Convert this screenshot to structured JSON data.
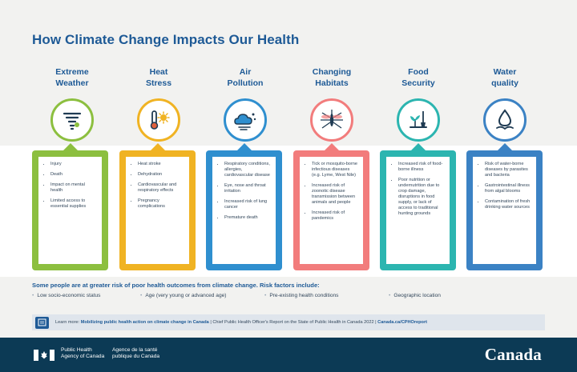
{
  "title": "How Climate Change Impacts Our Health",
  "topics": [
    {
      "label_lines": [
        "Extreme",
        "Weather"
      ],
      "icon": "tornado-icon",
      "color": "#8cbf3f",
      "items": [
        "Injury",
        "Death",
        "Impact on mental health",
        "Limited access to essential supplies"
      ]
    },
    {
      "label_lines": [
        "Heat",
        "Stress"
      ],
      "icon": "thermometer-sun-icon",
      "color": "#f0b323",
      "items": [
        "Heat stroke",
        "Dehydration",
        "Cardiovascular and respiratory effects",
        "Pregnancy complications"
      ]
    },
    {
      "label_lines": [
        "Air",
        "Pollution"
      ],
      "icon": "smog-cloud-icon",
      "color": "#2f8fcf",
      "items": [
        "Respiratory conditions, allergies, cardiovascular disease",
        "Eye, nose and throat irritation",
        "Increased risk of lung cancer",
        "Premature death"
      ]
    },
    {
      "label_lines": [
        "Changing",
        "Habitats"
      ],
      "icon": "mosquito-icon",
      "color": "#f27c7c",
      "items": [
        "Tick or mosquito-borne infectious diseases (e.g. Lyme, West Nile)",
        "Increased risk of zoonotic disease transmission between animals and people",
        "Increased risk of pandemics"
      ]
    },
    {
      "label_lines": [
        "Food",
        "Security"
      ],
      "icon": "crop-shovel-icon",
      "color": "#2cb5b0",
      "items": [
        "Increased risk of food-borne illness",
        "Poor nutrition or undernutrition due to crop damage, disruptions in food supply, or lack of access to traditional hunting grounds"
      ]
    },
    {
      "label_lines": [
        "Water",
        "quality"
      ],
      "icon": "water-drop-hand-icon",
      "color": "#3b82c4",
      "items": [
        "Risk of water-borne diseases by parasites and bacteria",
        "Gastrointestinal illness from algal blooms",
        "Contamination of fresh drinking water sources"
      ]
    }
  ],
  "risk": {
    "title": "Some people are at greater risk of poor health outcomes from climate change.  Risk factors include:",
    "items": [
      "Low socio-economic status",
      "Age (very young or advanced age)",
      "Pre-existing health conditions",
      "Geographic location"
    ]
  },
  "learn": {
    "prefix": "Learn more:",
    "link": "Mobilizing public health action on climate change in Canada",
    "middle": "| Chief Public Health Officer's Report on the State of Public Health in Canada 2022 |",
    "url": "Canada.ca/CPHOreport"
  },
  "footer": {
    "dept_en": [
      "Public Health",
      "Agency of Canada"
    ],
    "dept_fr": [
      "Agence de la santé",
      "publique du Canada"
    ],
    "wordmark": "Canada"
  }
}
